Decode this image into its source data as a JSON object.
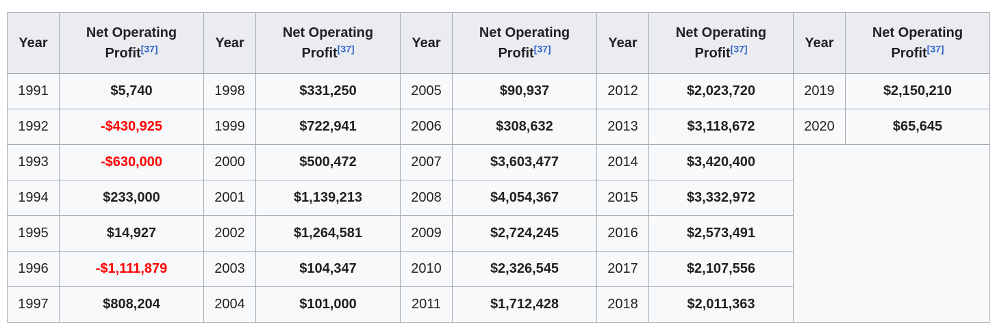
{
  "table": {
    "year_header": "Year",
    "profit_header": "Net Operating Profit",
    "ref_label": "[37]",
    "pairs": [
      {
        "rows": [
          {
            "year": "1991",
            "value": "$5,740",
            "negative": false
          },
          {
            "year": "1992",
            "value": "-$430,925",
            "negative": true
          },
          {
            "year": "1993",
            "value": "-$630,000",
            "negative": true
          },
          {
            "year": "1994",
            "value": "$233,000",
            "negative": false
          },
          {
            "year": "1995",
            "value": "$14,927",
            "negative": false
          },
          {
            "year": "1996",
            "value": "-$1,111,879",
            "negative": true
          },
          {
            "year": "1997",
            "value": "$808,204",
            "negative": false
          }
        ]
      },
      {
        "rows": [
          {
            "year": "1998",
            "value": "$331,250",
            "negative": false
          },
          {
            "year": "1999",
            "value": "$722,941",
            "negative": false
          },
          {
            "year": "2000",
            "value": "$500,472",
            "negative": false
          },
          {
            "year": "2001",
            "value": "$1,139,213",
            "negative": false
          },
          {
            "year": "2002",
            "value": "$1,264,581",
            "negative": false
          },
          {
            "year": "2003",
            "value": "$104,347",
            "negative": false
          },
          {
            "year": "2004",
            "value": "$101,000",
            "negative": false
          }
        ]
      },
      {
        "rows": [
          {
            "year": "2005",
            "value": "$90,937",
            "negative": false
          },
          {
            "year": "2006",
            "value": "$308,632",
            "negative": false
          },
          {
            "year": "2007",
            "value": "$3,603,477",
            "negative": false
          },
          {
            "year": "2008",
            "value": "$4,054,367",
            "negative": false
          },
          {
            "year": "2009",
            "value": "$2,724,245",
            "negative": false
          },
          {
            "year": "2010",
            "value": "$2,326,545",
            "negative": false
          },
          {
            "year": "2011",
            "value": "$1,712,428",
            "negative": false
          }
        ]
      },
      {
        "rows": [
          {
            "year": "2012",
            "value": "$2,023,720",
            "negative": false
          },
          {
            "year": "2013",
            "value": "$3,118,672",
            "negative": false
          },
          {
            "year": "2014",
            "value": "$3,420,400",
            "negative": false
          },
          {
            "year": "2015",
            "value": "$3,332,972",
            "negative": false
          },
          {
            "year": "2016",
            "value": "$2,573,491",
            "negative": false
          },
          {
            "year": "2017",
            "value": "$2,107,556",
            "negative": false
          },
          {
            "year": "2018",
            "value": "$2,011,363",
            "negative": false
          }
        ]
      },
      {
        "rows": [
          {
            "year": "2019",
            "value": "$2,150,210",
            "negative": false
          },
          {
            "year": "2020",
            "value": "$65,645",
            "negative": false
          }
        ]
      }
    ]
  },
  "colors": {
    "header_background": "#eaecf0",
    "cell_background": "#f8f9fa",
    "border": "#a2a9b1",
    "text": "#202122",
    "negative_value": "#ff0000",
    "reference_link": "#3366cc"
  }
}
